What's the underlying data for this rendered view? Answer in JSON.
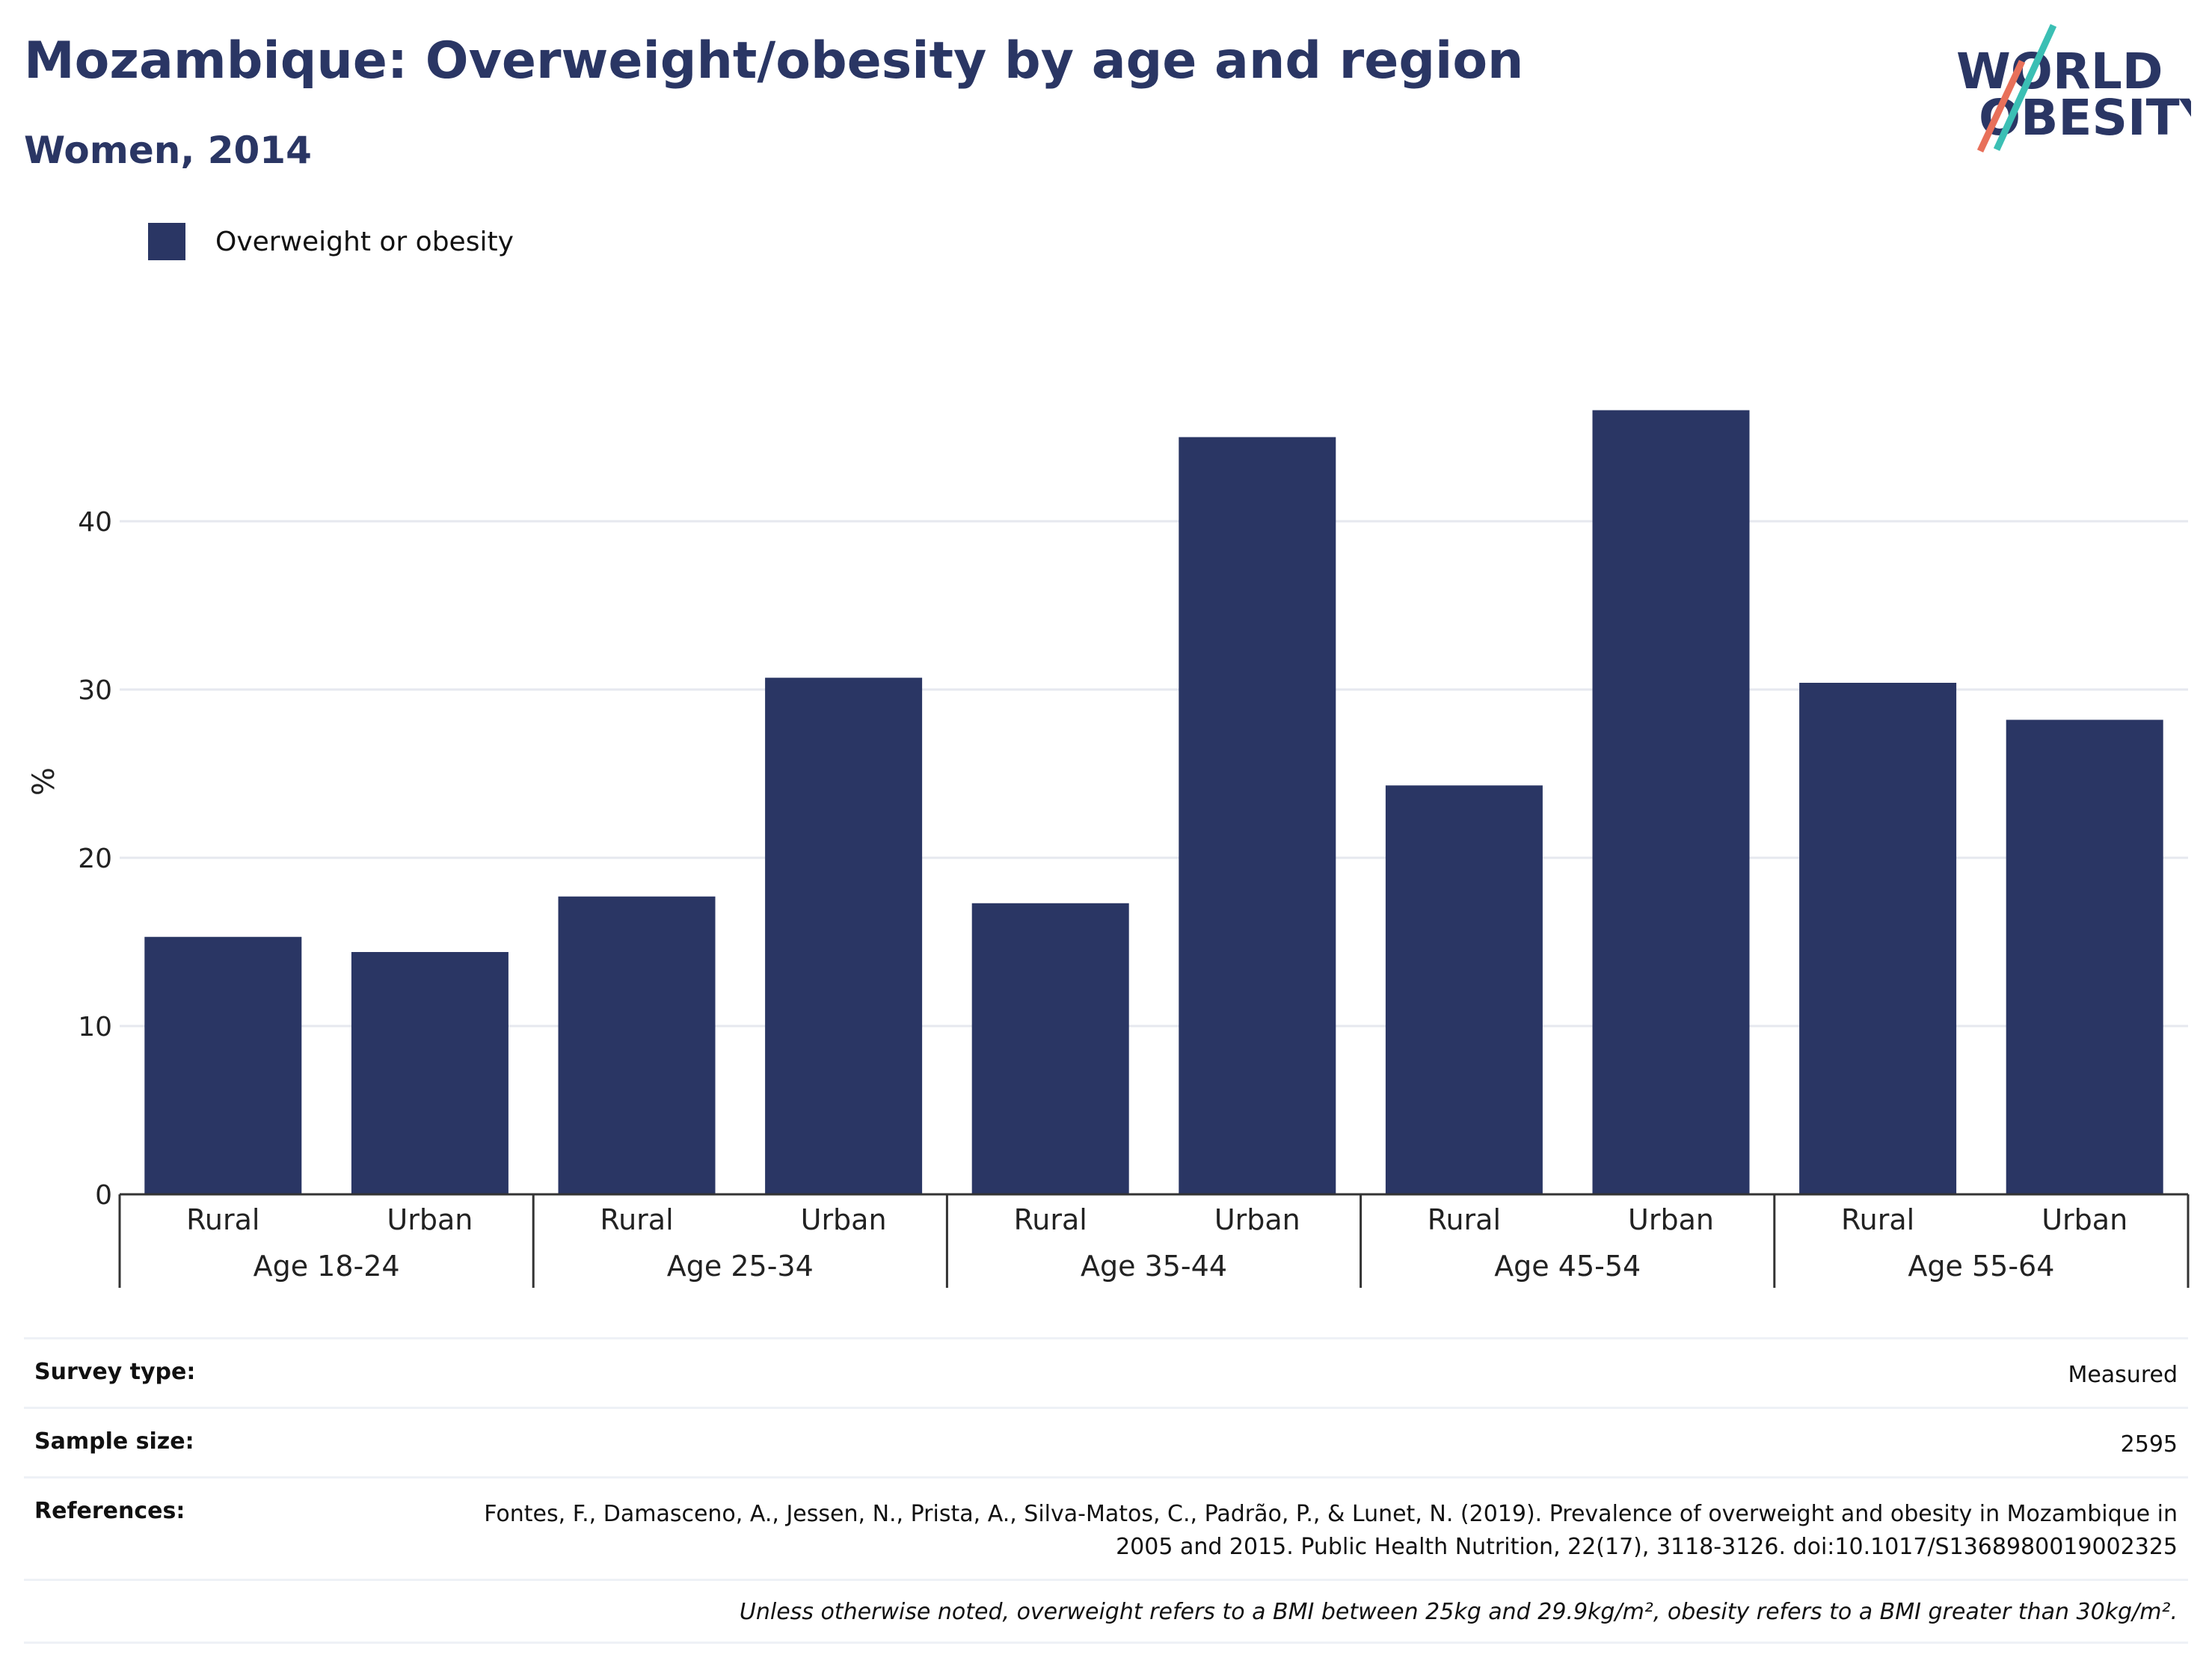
{
  "header": {
    "title": "Mozambique: Overweight/obesity by age and region",
    "subtitle": "Women, 2014"
  },
  "logo": {
    "line1": "WORLD",
    "line2": "OBESITY"
  },
  "chart_data": {
    "type": "bar",
    "ylabel": "%",
    "ylim": [
      0,
      50
    ],
    "yticks": [
      0,
      10,
      20,
      30,
      40
    ],
    "grid": true,
    "legend_position": "top-left",
    "colors": {
      "bar": "#2a3664",
      "grid": "#e6e8ef",
      "axis": "#333333"
    },
    "groups": [
      {
        "label": "Age 18-24",
        "categories": [
          "Rural",
          "Urban"
        ],
        "values": [
          15.3,
          14.4
        ]
      },
      {
        "label": "Age 25-34",
        "categories": [
          "Rural",
          "Urban"
        ],
        "values": [
          17.7,
          30.7
        ]
      },
      {
        "label": "Age 35-44",
        "categories": [
          "Rural",
          "Urban"
        ],
        "values": [
          17.3,
          45.0
        ]
      },
      {
        "label": "Age 45-54",
        "categories": [
          "Rural",
          "Urban"
        ],
        "values": [
          24.3,
          46.6
        ]
      },
      {
        "label": "Age 55-64",
        "categories": [
          "Rural",
          "Urban"
        ],
        "values": [
          30.4,
          28.2
        ]
      }
    ],
    "series": [
      {
        "name": "Overweight or obesity"
      }
    ]
  },
  "info": {
    "survey_type_label": "Survey type:",
    "survey_type_value": "Measured",
    "sample_size_label": "Sample size:",
    "sample_size_value": "2595",
    "references_label": "References:",
    "references_value": "Fontes, F., Damasceno, A., Jessen, N., Prista, A., Silva-Matos, C., Padrão, P., & Lunet, N. (2019). Prevalence of overweight and obesity in Mozambique in 2005 and 2015. Public Health Nutrition, 22(17), 3118-3126. doi:10.1017/S1368980019002325",
    "note": "Unless otherwise noted, overweight refers to a BMI between 25kg and 29.9kg/m², obesity refers to a BMI greater than 30kg/m²."
  }
}
